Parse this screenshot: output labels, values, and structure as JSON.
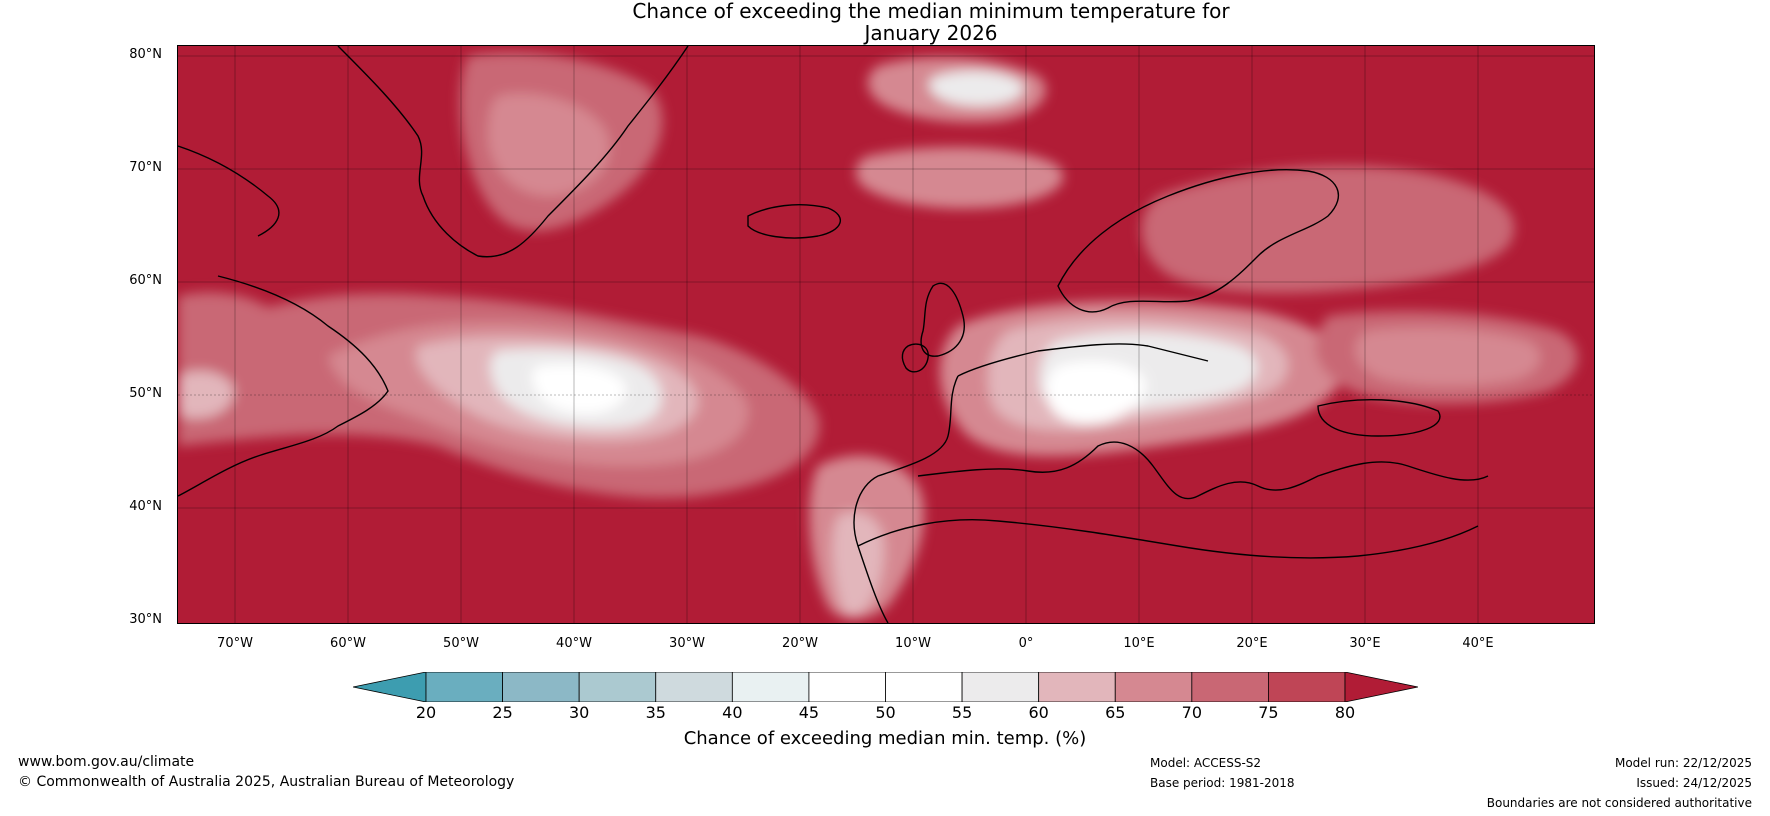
{
  "title_line1": "Chance of exceeding the median minimum temperature for",
  "title_line2": "January 2026",
  "map": {
    "lat_ticks": [
      "80°N",
      "70°N",
      "60°N",
      "50°N",
      "40°N",
      "30°N"
    ],
    "lon_ticks": [
      "70°W",
      "60°W",
      "50°W",
      "40°W",
      "30°W",
      "20°W",
      "10°W",
      "0°",
      "10°E",
      "20°E",
      "30°E",
      "40°E"
    ],
    "extent": {
      "lon_min": -75,
      "lon_max": 50,
      "lat_min": 30,
      "lat_max": 81
    },
    "gridlines": true,
    "dominant_color": "#b11c36"
  },
  "colorbar": {
    "labels": [
      "20",
      "25",
      "30",
      "35",
      "40",
      "45",
      "50",
      "55",
      "60",
      "65",
      "70",
      "75",
      "80"
    ],
    "colors": [
      "#3d9db0",
      "#6aaebf",
      "#8cb8c6",
      "#abc9d0",
      "#cfdade",
      "#e9f1f2",
      "#ffffff",
      "#ffffff",
      "#ecebec",
      "#e2b6bb",
      "#d58891",
      "#c96774",
      "#bf4556",
      "#b11c36"
    ],
    "title": "Chance of exceeding median min. temp. (%)"
  },
  "footer": {
    "website": "www.bom.gov.au/climate",
    "copyright": "© Commonwealth of Australia 2025, Australian Bureau of Meteorology",
    "model": "Model: ACCESS-S2",
    "base_period": "Base period: 1981-2018",
    "model_run": "Model run: 22/12/2025",
    "issued": "Issued: 24/12/2025",
    "boundaries": "Boundaries are not considered authoritative"
  }
}
